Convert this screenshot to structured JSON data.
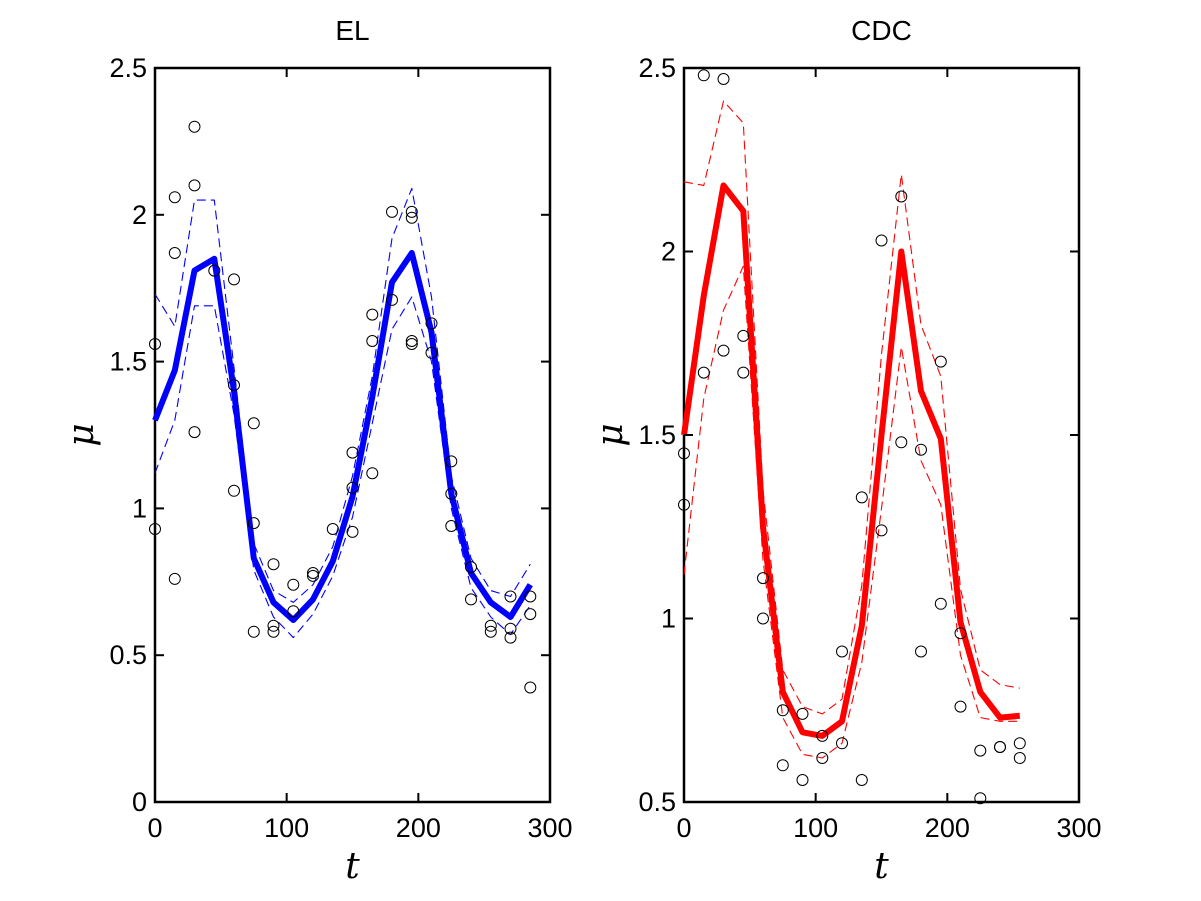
{
  "chart_data": [
    {
      "type": "line",
      "title": "EL",
      "xlabel": "t",
      "ylabel": "μ",
      "xlim": [
        0,
        300
      ],
      "ylim": [
        0,
        2.5
      ],
      "xticks": [
        "0",
        "100",
        "200",
        "300"
      ],
      "yticks": [
        "0",
        "0.5",
        "1",
        "1.5",
        "2",
        "2.5"
      ],
      "grid": false,
      "colors": {
        "mean": "#0000ff",
        "band": "#0000ff",
        "points": "#000000"
      },
      "series": [
        {
          "role": "mean",
          "style": "solid-thick",
          "x": [
            0,
            15,
            30,
            45,
            60,
            75,
            90,
            105,
            120,
            135,
            150,
            165,
            180,
            195,
            210,
            225,
            240,
            255,
            270,
            285
          ],
          "y": [
            1.3,
            1.47,
            1.81,
            1.85,
            1.4,
            0.83,
            0.68,
            0.62,
            0.69,
            0.82,
            1.04,
            1.38,
            1.77,
            1.87,
            1.6,
            1.05,
            0.78,
            0.68,
            0.63,
            0.74
          ]
        },
        {
          "role": "upper-band",
          "style": "dashed-thin",
          "x": [
            0,
            15,
            30,
            45,
            60,
            75,
            90,
            105,
            120,
            135,
            150,
            165,
            180,
            195,
            210,
            225,
            240,
            255,
            270,
            285
          ],
          "y": [
            1.73,
            1.62,
            2.05,
            2.05,
            1.48,
            0.88,
            0.72,
            0.68,
            0.74,
            0.87,
            1.11,
            1.45,
            1.92,
            2.09,
            1.72,
            1.11,
            0.83,
            0.72,
            0.7,
            0.81
          ]
        },
        {
          "role": "lower-band",
          "style": "dashed-thin",
          "x": [
            0,
            15,
            30,
            45,
            60,
            75,
            90,
            105,
            120,
            135,
            150,
            165,
            180,
            195,
            210,
            225,
            240,
            255,
            270,
            285
          ],
          "y": [
            1.12,
            1.3,
            1.69,
            1.69,
            1.32,
            0.79,
            0.63,
            0.56,
            0.64,
            0.77,
            0.97,
            1.29,
            1.61,
            1.72,
            1.5,
            1.0,
            0.73,
            0.63,
            0.57,
            0.67
          ]
        }
      ],
      "observations": {
        "x": [
          0,
          0,
          15,
          15,
          15,
          30,
          30,
          30,
          45,
          60,
          60,
          60,
          75,
          75,
          75,
          90,
          90,
          90,
          105,
          105,
          120,
          120,
          135,
          150,
          150,
          150,
          165,
          165,
          165,
          180,
          180,
          195,
          195,
          195,
          195,
          210,
          210,
          225,
          225,
          225,
          240,
          240,
          255,
          255,
          270,
          270,
          270,
          285,
          285,
          285
        ],
        "y": [
          1.56,
          0.93,
          2.06,
          1.87,
          0.76,
          2.3,
          2.1,
          1.26,
          1.81,
          1.78,
          1.42,
          1.06,
          1.29,
          0.95,
          0.58,
          0.81,
          0.6,
          0.58,
          0.74,
          0.65,
          0.78,
          0.77,
          0.93,
          1.19,
          1.07,
          0.92,
          1.66,
          1.57,
          1.12,
          2.01,
          1.71,
          2.01,
          1.99,
          1.57,
          1.56,
          1.63,
          1.53,
          1.16,
          0.94,
          1.05,
          0.8,
          0.69,
          0.6,
          0.58,
          0.7,
          0.59,
          0.56,
          0.7,
          0.64,
          0.39
        ]
      }
    },
    {
      "type": "line",
      "title": "CDC",
      "xlabel": "t",
      "ylabel": "μ",
      "xlim": [
        0,
        300
      ],
      "ylim": [
        0.5,
        2.5
      ],
      "xticks": [
        "0",
        "100",
        "200",
        "300"
      ],
      "yticks": [
        "0.5",
        "1",
        "1.5",
        "2",
        "2.5"
      ],
      "grid": false,
      "colors": {
        "mean": "#ff0000",
        "band": "#ff0000",
        "points": "#000000"
      },
      "series": [
        {
          "role": "mean",
          "style": "solid-thick",
          "x": [
            0,
            15,
            30,
            45,
            60,
            75,
            90,
            105,
            120,
            135,
            150,
            165,
            180,
            195,
            210,
            225,
            240,
            255
          ],
          "y": [
            1.5,
            1.88,
            2.18,
            2.11,
            1.25,
            0.8,
            0.69,
            0.68,
            0.72,
            0.98,
            1.5,
            2.0,
            1.62,
            1.49,
            0.99,
            0.8,
            0.73,
            0.735
          ]
        },
        {
          "role": "upper-band",
          "style": "dashed-thin",
          "x": [
            0,
            15,
            30,
            45,
            60,
            75,
            90,
            105,
            120,
            135,
            150,
            165,
            180,
            195,
            210,
            225,
            240,
            255
          ],
          "y": [
            2.19,
            2.18,
            2.41,
            2.35,
            1.35,
            0.86,
            0.76,
            0.74,
            0.78,
            1.09,
            1.72,
            2.21,
            1.8,
            1.66,
            1.08,
            0.86,
            0.82,
            0.81
          ]
        },
        {
          "role": "lower-band",
          "style": "dashed-thin",
          "x": [
            0,
            15,
            30,
            45,
            60,
            75,
            90,
            105,
            120,
            135,
            150,
            165,
            180,
            195,
            210,
            225,
            240,
            255
          ],
          "y": [
            1.12,
            1.6,
            1.84,
            1.96,
            1.16,
            0.73,
            0.63,
            0.62,
            0.66,
            0.88,
            1.3,
            1.74,
            1.43,
            1.31,
            0.9,
            0.73,
            0.72,
            0.72
          ]
        }
      ],
      "observations": {
        "x": [
          0,
          0,
          15,
          15,
          30,
          30,
          45,
          45,
          60,
          60,
          75,
          75,
          90,
          90,
          105,
          105,
          120,
          120,
          135,
          135,
          150,
          150,
          165,
          165,
          180,
          180,
          195,
          195,
          210,
          210,
          225,
          225,
          240,
          240,
          255,
          255
        ],
        "y": [
          1.45,
          1.31,
          2.48,
          1.67,
          2.47,
          1.73,
          1.77,
          1.67,
          1.11,
          1.0,
          0.75,
          0.6,
          0.74,
          0.56,
          0.68,
          0.62,
          0.91,
          0.66,
          1.33,
          0.56,
          2.03,
          1.24,
          2.15,
          1.48,
          1.46,
          0.91,
          1.7,
          1.04,
          0.96,
          0.76,
          0.64,
          0.51,
          0.65,
          0.65,
          0.66,
          0.62
        ]
      }
    }
  ]
}
